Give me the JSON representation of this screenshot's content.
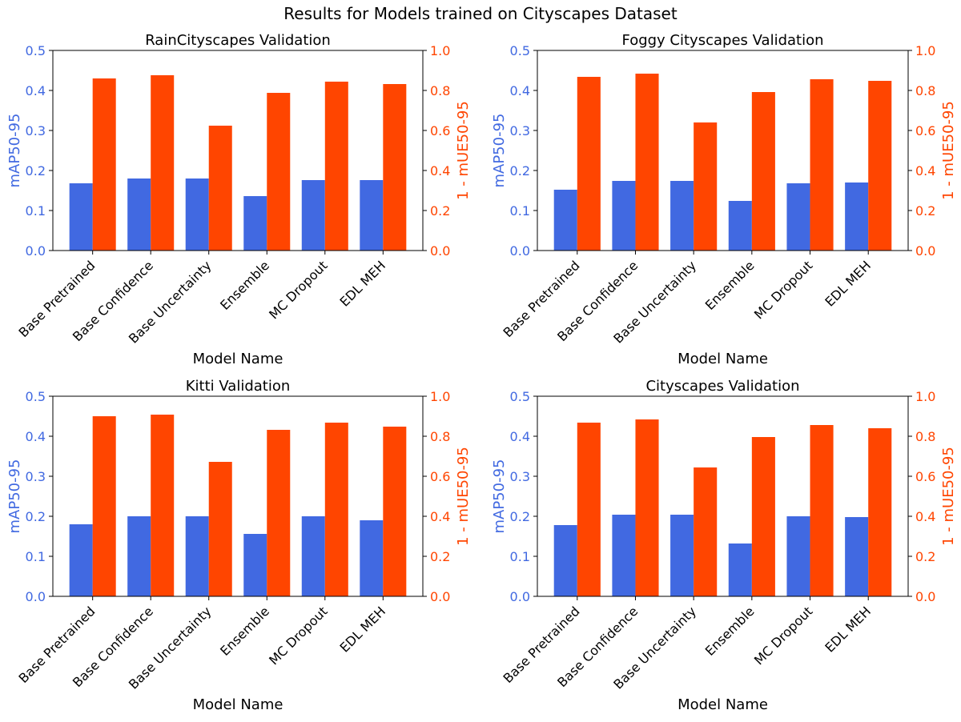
{
  "suptitle": "Results for Models trained on Cityscapes Dataset",
  "colors": {
    "left_series": "#4169E1",
    "right_series": "#FF4500",
    "axis": "#000000"
  },
  "chart_data": [
    {
      "type": "bar",
      "title": "RainCityscapes Validation",
      "xlabel": "Model Name",
      "ylabel": "mAP50-95",
      "ylabel_right": "1 - mUE50-95",
      "ylim": [
        0,
        0.5
      ],
      "ylim_right": [
        0,
        1.0
      ],
      "yticks": [
        "0.0",
        "0.1",
        "0.2",
        "0.3",
        "0.4",
        "0.5"
      ],
      "yticks_right": [
        "0.0",
        "0.2",
        "0.4",
        "0.6",
        "0.8",
        "1.0"
      ],
      "grid": false,
      "categories": [
        "Base Pretrained",
        "Base Confidence",
        "Base Uncertainty",
        "Ensemble",
        "MC Dropout",
        "EDL MEH"
      ],
      "series": [
        {
          "axis": "left",
          "values": [
            0.168,
            0.18,
            0.18,
            0.136,
            0.176,
            0.176
          ]
        },
        {
          "axis": "right",
          "values": [
            0.86,
            0.876,
            0.624,
            0.788,
            0.844,
            0.832
          ]
        }
      ]
    },
    {
      "type": "bar",
      "title": "Foggy Cityscapes Validation",
      "xlabel": "Model Name",
      "ylabel": "mAP50-95",
      "ylabel_right": "1 - mUE50-95",
      "ylim": [
        0,
        0.5
      ],
      "ylim_right": [
        0,
        1.0
      ],
      "yticks": [
        "0.0",
        "0.1",
        "0.2",
        "0.3",
        "0.4",
        "0.5"
      ],
      "yticks_right": [
        "0.0",
        "0.2",
        "0.4",
        "0.6",
        "0.8",
        "1.0"
      ],
      "grid": false,
      "categories": [
        "Base Pretrained",
        "Base Confidence",
        "Base Uncertainty",
        "Ensemble",
        "MC Dropout",
        "EDL MEH"
      ],
      "series": [
        {
          "axis": "left",
          "values": [
            0.152,
            0.174,
            0.174,
            0.124,
            0.168,
            0.17
          ]
        },
        {
          "axis": "right",
          "values": [
            0.868,
            0.884,
            0.64,
            0.792,
            0.856,
            0.848
          ]
        }
      ]
    },
    {
      "type": "bar",
      "title": "Kitti Validation",
      "xlabel": "Model Name",
      "ylabel": "mAP50-95",
      "ylabel_right": "1 - mUE50-95",
      "ylim": [
        0,
        0.5
      ],
      "ylim_right": [
        0,
        1.0
      ],
      "yticks": [
        "0.0",
        "0.1",
        "0.2",
        "0.3",
        "0.4",
        "0.5"
      ],
      "yticks_right": [
        "0.0",
        "0.2",
        "0.4",
        "0.6",
        "0.8",
        "1.0"
      ],
      "grid": false,
      "categories": [
        "Base Pretrained",
        "Base Confidence",
        "Base Uncertainty",
        "Ensemble",
        "MC Dropout",
        "EDL MEH"
      ],
      "series": [
        {
          "axis": "left",
          "values": [
            0.18,
            0.2,
            0.2,
            0.156,
            0.2,
            0.19
          ]
        },
        {
          "axis": "right",
          "values": [
            0.9,
            0.908,
            0.672,
            0.832,
            0.868,
            0.848
          ]
        }
      ]
    },
    {
      "type": "bar",
      "title": "Cityscapes Validation",
      "xlabel": "Model Name",
      "ylabel": "mAP50-95",
      "ylabel_right": "1 - mUE50-95",
      "ylim": [
        0,
        0.5
      ],
      "ylim_right": [
        0,
        1.0
      ],
      "yticks": [
        "0.0",
        "0.1",
        "0.2",
        "0.3",
        "0.4",
        "0.5"
      ],
      "yticks_right": [
        "0.0",
        "0.2",
        "0.4",
        "0.6",
        "0.8",
        "1.0"
      ],
      "grid": false,
      "categories": [
        "Base Pretrained",
        "Base Confidence",
        "Base Uncertainty",
        "Ensemble",
        "MC Dropout",
        "EDL MEH"
      ],
      "series": [
        {
          "axis": "left",
          "values": [
            0.178,
            0.204,
            0.204,
            0.132,
            0.2,
            0.198
          ]
        },
        {
          "axis": "right",
          "values": [
            0.868,
            0.884,
            0.644,
            0.796,
            0.856,
            0.84
          ]
        }
      ]
    }
  ]
}
